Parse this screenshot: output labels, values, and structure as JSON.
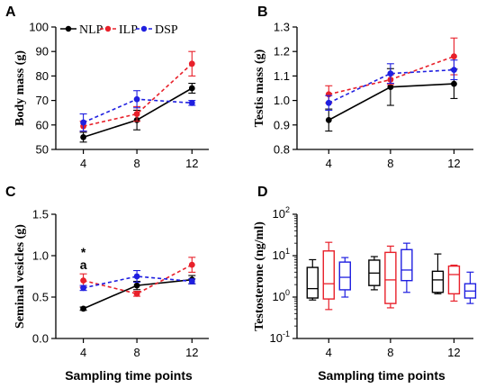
{
  "colors": {
    "NLP": "#000000",
    "ILP": "#e8202a",
    "DSP": "#1f1fe0"
  },
  "legend": [
    "NLP",
    "ILP",
    "DSP"
  ],
  "chart_data": [
    {
      "panel": "A",
      "type": "line",
      "ylabel": "Body mass (g)",
      "xlabel": "",
      "categories": [
        "4",
        "8",
        "12"
      ],
      "ylim": [
        50,
        100
      ],
      "yticks": [
        "50",
        "60",
        "70",
        "80",
        "90",
        "100"
      ],
      "legend_placement": "top",
      "series": [
        {
          "name": "NLP",
          "values": [
            55,
            62,
            75
          ],
          "err": [
            2,
            4,
            2
          ]
        },
        {
          "name": "ILP",
          "values": [
            59.5,
            64.5,
            85
          ],
          "err": [
            2,
            3,
            5
          ]
        },
        {
          "name": "DSP",
          "values": [
            61,
            70.5,
            69
          ],
          "err": [
            3.5,
            3.5,
            1
          ]
        }
      ]
    },
    {
      "panel": "B",
      "type": "line",
      "ylabel": "Testis mass (g)",
      "xlabel": "",
      "categories": [
        "4",
        "8",
        "12"
      ],
      "ylim": [
        0.8,
        1.3
      ],
      "yticks": [
        "0.8",
        "0.9",
        "1.0",
        "1.1",
        "1.2",
        "1.3"
      ],
      "series": [
        {
          "name": "NLP",
          "values": [
            0.92,
            1.055,
            1.068
          ],
          "err": [
            0.045,
            0.075,
            0.06
          ]
        },
        {
          "name": "ILP",
          "values": [
            1.025,
            1.085,
            1.18
          ],
          "err": [
            0.035,
            0.02,
            0.075
          ]
        },
        {
          "name": "DSP",
          "values": [
            0.99,
            1.11,
            1.125
          ],
          "err": [
            0.03,
            0.04,
            0.04
          ]
        }
      ]
    },
    {
      "panel": "C",
      "type": "line",
      "ylabel": "Seminal vesicles (g)",
      "xlabel": "Sampling time points",
      "categories": [
        "4",
        "8",
        "12"
      ],
      "ylim": [
        0.0,
        1.5
      ],
      "yticks": [
        "0.0",
        "0.5",
        "1.0",
        "1.5"
      ],
      "annotation": {
        "star": "*",
        "letter": "a",
        "category": "4"
      },
      "series": [
        {
          "name": "NLP",
          "values": [
            0.36,
            0.64,
            0.71
          ],
          "err": [
            0.02,
            0.05,
            0.05
          ]
        },
        {
          "name": "ILP",
          "values": [
            0.7,
            0.54,
            0.89
          ],
          "err": [
            0.08,
            0.03,
            0.09
          ]
        },
        {
          "name": "DSP",
          "values": [
            0.61,
            0.75,
            0.69
          ],
          "err": [
            0.03,
            0.07,
            0.03
          ]
        }
      ]
    },
    {
      "panel": "D",
      "type": "box",
      "ylabel": "Testosterone (ng/ml)",
      "xlabel": "Sampling time points",
      "categories": [
        "4",
        "8",
        "12"
      ],
      "yscale": "log",
      "ylim": [
        0.1,
        100
      ],
      "yticks": [
        {
          "base": "10",
          "exp": "-1"
        },
        {
          "base": "10",
          "exp": "0"
        },
        {
          "base": "10",
          "exp": "1"
        },
        {
          "base": "10",
          "exp": "2"
        }
      ],
      "series": [
        {
          "name": "NLP",
          "boxes": [
            {
              "min": 0.85,
              "q1": 0.95,
              "median": 1.6,
              "q3": 5.2,
              "max": 8.0
            },
            {
              "min": 1.5,
              "q1": 1.9,
              "median": 3.8,
              "q3": 7.8,
              "max": 9.5
            },
            {
              "min": 1.2,
              "q1": 1.3,
              "median": 2.6,
              "q3": 4.2,
              "max": 11.0
            }
          ]
        },
        {
          "name": "ILP",
          "boxes": [
            {
              "min": 0.5,
              "q1": 0.9,
              "median": 2.1,
              "q3": 13.0,
              "max": 21.0
            },
            {
              "min": 0.55,
              "q1": 0.7,
              "median": 2.6,
              "q3": 12.0,
              "max": 17.0
            },
            {
              "min": 0.8,
              "q1": 1.2,
              "median": 3.5,
              "q3": 5.6,
              "max": 5.9
            }
          ]
        },
        {
          "name": "DSP",
          "boxes": [
            {
              "min": 1.0,
              "q1": 1.5,
              "median": 3.0,
              "q3": 7.0,
              "max": 9.0
            },
            {
              "min": 1.3,
              "q1": 2.5,
              "median": 4.5,
              "q3": 14.0,
              "max": 20.0
            },
            {
              "min": 0.7,
              "q1": 0.95,
              "median": 1.4,
              "q3": 2.1,
              "max": 4.0
            }
          ]
        }
      ]
    }
  ]
}
